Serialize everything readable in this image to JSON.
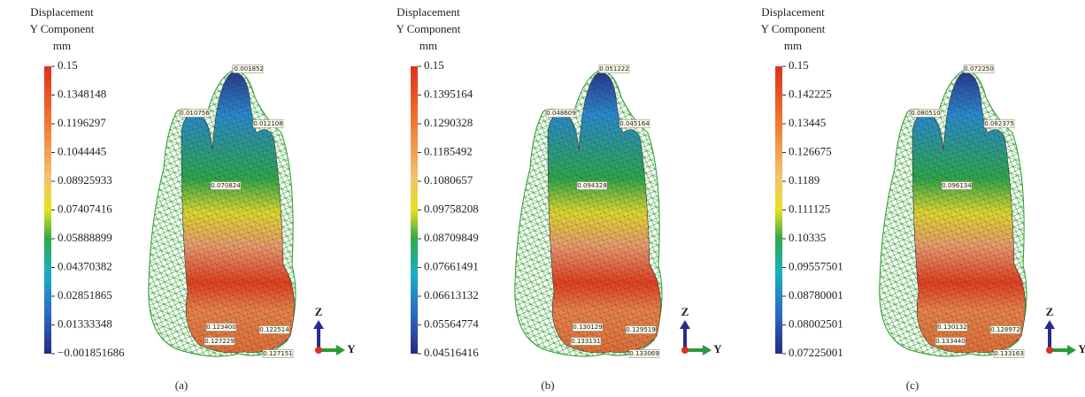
{
  "panels": [
    {
      "legend_title": [
        "Displacement",
        "Y Component",
        "mm"
      ],
      "colorbar_ticks": [
        "0.15",
        "0.1348148",
        "0.1196297",
        "0.1044445",
        "0.08925933",
        "0.07407416",
        "0.05888899",
        "0.04370382",
        "0.02851865",
        "0.01333348",
        "−0.001851686"
      ],
      "probes": [
        "-0.001852",
        "0.010756",
        "0.012108",
        "0.070824",
        "0.123400",
        "0.122514",
        "0.127229",
        "0.127151"
      ],
      "axes": {
        "z": "Z",
        "y": "Y"
      },
      "caption": "(a)"
    },
    {
      "legend_title": [
        "Displacement",
        "Y Component",
        "mm"
      ],
      "colorbar_ticks": [
        "0.15",
        "0.1395164",
        "0.1290328",
        "0.1185492",
        "0.1080657",
        "0.09758208",
        "0.08709849",
        "0.07661491",
        "0.06613132",
        "0.05564774",
        "0.04516416"
      ],
      "probes": [
        "0.051222",
        "0.048609",
        "0.045164",
        "0.094328",
        "0.130129",
        "0.129519",
        "0.133131",
        "0.133069"
      ],
      "axes": {
        "z": "Z",
        "y": "Y"
      },
      "caption": "(b)"
    },
    {
      "legend_title": [
        "Displacement",
        "Y Component",
        "mm"
      ],
      "colorbar_ticks": [
        "0.15",
        "0.142225",
        "0.13445",
        "0.126675",
        "0.1189",
        "0.111125",
        "0.10335",
        "0.09557501",
        "0.08780001",
        "0.08002501",
        "0.07225001"
      ],
      "probes": [
        "0.072250",
        "0.080510",
        "0.082375",
        "0.096134",
        "0.130132",
        "0.128972",
        "0.133440",
        "0.133163"
      ],
      "axes": {
        "z": "Z",
        "y": "Y"
      },
      "caption": "(c)"
    }
  ]
}
